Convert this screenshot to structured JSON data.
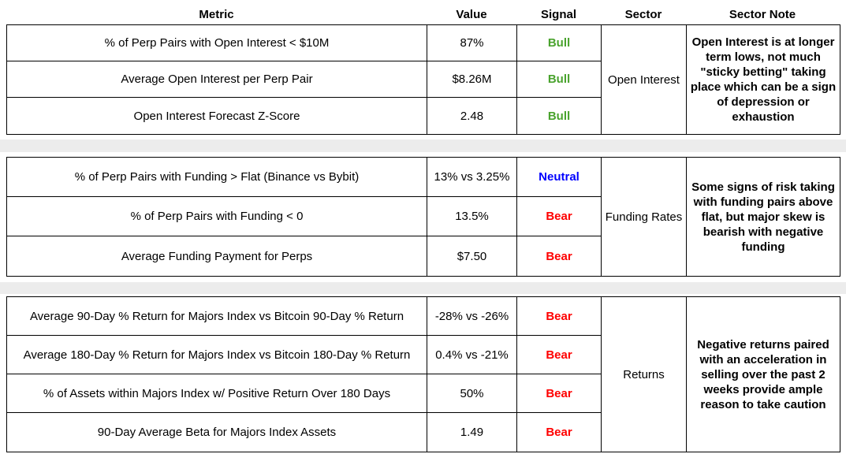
{
  "header": {
    "metric": "Metric",
    "value": "Value",
    "signal": "Signal",
    "sector": "Sector",
    "sector_note": "Sector Note"
  },
  "colors": {
    "bull": "#4AA32E",
    "neutral": "#0000FF",
    "bear": "#FF0000",
    "separator": "#ECECEC",
    "border": "#000000"
  },
  "groups": [
    {
      "sector": "Open Interest",
      "note": "Open Interest is at longer term lows, not much \"sticky betting\" taking place which can be a sign of depression or exhaustion",
      "rows": [
        {
          "metric": "% of Perp Pairs with Open Interest < $10M",
          "value": "87%",
          "signal": "Bull"
        },
        {
          "metric": "Average Open Interest per Perp Pair",
          "value": "$8.26M",
          "signal": "Bull"
        },
        {
          "metric": "Open Interest Forecast Z-Score",
          "value": "2.48",
          "signal": "Bull"
        }
      ]
    },
    {
      "sector": "Funding Rates",
      "note": "Some signs of risk taking with funding pairs above flat, but major skew is bearish with negative funding",
      "rows": [
        {
          "metric": "% of Perp Pairs with Funding > Flat (Binance vs Bybit)",
          "value": "13% vs 3.25%",
          "signal": "Neutral"
        },
        {
          "metric": "% of Perp Pairs with Funding < 0",
          "value": "13.5%",
          "signal": "Bear"
        },
        {
          "metric": "Average Funding Payment for Perps",
          "value": "$7.50",
          "signal": "Bear"
        }
      ]
    },
    {
      "sector": "Returns",
      "note": "Negative returns paired with an acceleration in selling over the past 2 weeks provide ample reason to take caution",
      "rows": [
        {
          "metric": "Average 90-Day % Return for Majors Index vs Bitcoin 90-Day % Return",
          "value": "-28% vs -26%",
          "signal": "Bear"
        },
        {
          "metric": "Average 180-Day % Return for Majors Index vs Bitcoin 180-Day % Return",
          "value": "0.4% vs -21%",
          "signal": "Bear"
        },
        {
          "metric": "% of Assets within Majors Index w/ Positive Return Over 180 Days",
          "value": "50%",
          "signal": "Bear"
        },
        {
          "metric": "90-Day Average Beta for Majors Index Assets",
          "value": "1.49",
          "signal": "Bear"
        }
      ]
    }
  ]
}
